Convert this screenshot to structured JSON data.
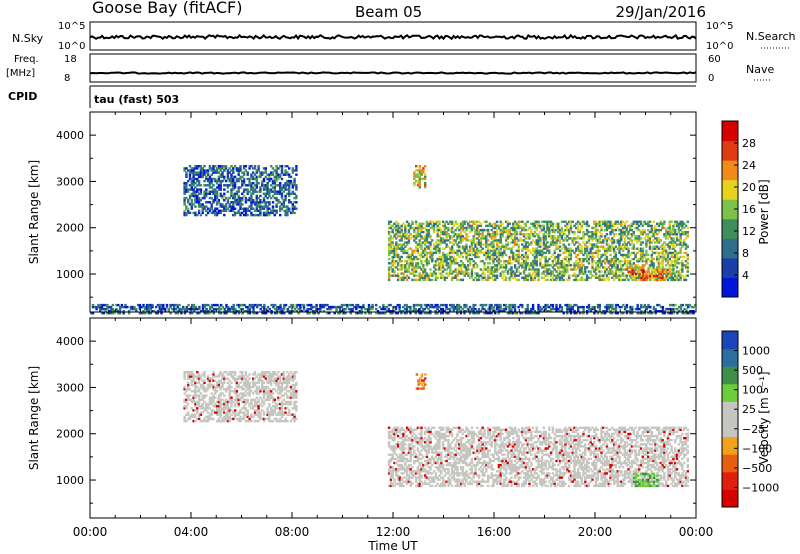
{
  "header": {
    "station": "Goose Bay (fitACF)",
    "beam": "Beam 05",
    "date": "29/Jan/2016"
  },
  "strips": {
    "nsky_label": "N.Sky",
    "nsky_ticks": [
      "10^5",
      "10^0"
    ],
    "nsearch_label": "N.Search",
    "nsearch_ticks": [
      "10^5",
      "10^0"
    ],
    "freq_label_1": "Freq.",
    "freq_label_2": "[MHz]",
    "freq_ticks": [
      "18",
      "8"
    ],
    "nave_label": "Nave",
    "nave_ticks": [
      "60",
      "0"
    ],
    "cpid_label": "CPID",
    "cpid_value": "tau (fast) 503"
  },
  "colors": {
    "power_scale": [
      "#0016d8",
      "#1a3fa6",
      "#2f6f8e",
      "#3f8f5a",
      "#7cc24a",
      "#e8d21c",
      "#f08a1a",
      "#e03a10",
      "#d70000"
    ],
    "velocity_scale": [
      "#1c46b8",
      "#2a6fa0",
      "#3d8f4a",
      "#6ccf3a",
      "#c6c6c0",
      "#c6c6c0",
      "#f2a11a",
      "#e8600f",
      "#e0200f",
      "#d70000"
    ],
    "ground_scatter": "#c6c6c0"
  },
  "chart_data": [
    {
      "type": "heatmap",
      "panel": "power",
      "ylabel": "Slant Range [km]",
      "ylim": [
        180,
        4500
      ],
      "yticks": [
        1000,
        2000,
        3000,
        4000
      ],
      "xticks": [
        "00:00",
        "04:00",
        "08:00",
        "12:00",
        "16:00",
        "20:00",
        "00:00"
      ],
      "xlim_hours": [
        0,
        24
      ],
      "colorbar": {
        "label": "Power [dB]",
        "ticks": [
          "4",
          "8",
          "12",
          "16",
          "20",
          "24",
          "28"
        ],
        "range": [
          0,
          30
        ]
      },
      "regions": [
        {
          "t0": 3.7,
          "t1": 8.2,
          "r0": 2300,
          "r1": 3400,
          "level": 6
        },
        {
          "t0": 11.8,
          "t1": 23.7,
          "r0": 900,
          "r1": 2200,
          "level": 14
        },
        {
          "t0": 0.0,
          "t1": 24.0,
          "r0": 180,
          "r1": 400,
          "level": 6
        },
        {
          "t0": 12.8,
          "t1": 13.3,
          "r0": 2900,
          "r1": 3400,
          "level": 18
        },
        {
          "t0": 21.3,
          "t1": 23.0,
          "r0": 900,
          "r1": 1200,
          "level": 22
        }
      ]
    },
    {
      "type": "heatmap",
      "panel": "velocity",
      "ylabel": "Slant Range [km]",
      "ylim": [
        180,
        4500
      ],
      "yticks": [
        1000,
        2000,
        3000,
        4000
      ],
      "xticks": [
        "00:00",
        "04:00",
        "08:00",
        "12:00",
        "16:00",
        "20:00",
        "00:00"
      ],
      "xlim_hours": [
        0,
        24
      ],
      "xlabel": "Time UT",
      "colorbar": {
        "label": "Velocity [m s⁻¹]",
        "ticks": [
          "1000",
          "500",
          "100",
          "25",
          "−25",
          "−100",
          "−500",
          "−1000"
        ]
      },
      "regions": [
        {
          "t0": 3.7,
          "t1": 8.2,
          "r0": 2300,
          "r1": 3400,
          "level": 0
        },
        {
          "t0": 11.8,
          "t1": 23.7,
          "r0": 900,
          "r1": 2200,
          "level": 0
        },
        {
          "t0": 12.9,
          "t1": 13.3,
          "r0": 3000,
          "r1": 3350,
          "level": -300
        },
        {
          "t0": 21.5,
          "t1": 22.5,
          "r0": 900,
          "r1": 1200,
          "level": 150
        }
      ]
    }
  ]
}
